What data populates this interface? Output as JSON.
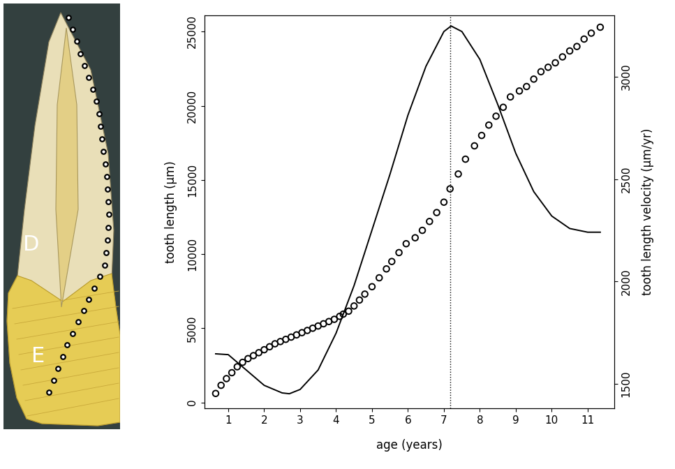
{
  "chart_data": {
    "type": "scatter",
    "xlabel": "age (years)",
    "ylabel": "tooth length (μm)",
    "y2label": "tooth length velocity (μm/yr)",
    "xlim": [
      0.34,
      11.74
    ],
    "xticks": [
      1,
      2,
      3,
      4,
      5,
      6,
      7,
      8,
      9,
      10,
      11
    ],
    "ylim": [
      -400,
      26100
    ],
    "yticks": [
      0,
      5000,
      10000,
      15000,
      20000,
      25000
    ],
    "y2lim": [
      1381,
      3300
    ],
    "y2ticks": [
      1500,
      2000,
      2500,
      3000
    ],
    "grid": false,
    "series": [
      {
        "type": "scatter",
        "color": "#000000",
        "marker": "o",
        "x": [
          0.65,
          0.8,
          0.95,
          1.1,
          1.25,
          1.4,
          1.55,
          1.7,
          1.85,
          2.0,
          2.15,
          2.3,
          2.45,
          2.6,
          2.75,
          2.9,
          3.05,
          3.2,
          3.35,
          3.5,
          3.65,
          3.8,
          3.95,
          4.1,
          4.2,
          4.35,
          4.5,
          4.65,
          4.8,
          5.0,
          5.2,
          5.4,
          5.55,
          5.75,
          5.95,
          6.2,
          6.4,
          6.6,
          6.8,
          7.0,
          7.17,
          7.4,
          7.6,
          7.85,
          8.05,
          8.25,
          8.45,
          8.65,
          8.85,
          9.1,
          9.3,
          9.5,
          9.7,
          9.9,
          10.1,
          10.3,
          10.5,
          10.7,
          10.9,
          11.1,
          11.35
        ],
        "values": [
          600,
          1150,
          1600,
          2000,
          2400,
          2700,
          2950,
          3150,
          3350,
          3550,
          3750,
          3950,
          4100,
          4250,
          4400,
          4550,
          4700,
          4850,
          5000,
          5150,
          5300,
          5450,
          5600,
          5800,
          5950,
          6150,
          6500,
          6900,
          7300,
          7800,
          8400,
          9000,
          9500,
          10100,
          10700,
          11100,
          11600,
          12200,
          12800,
          13500,
          14400,
          15400,
          16400,
          17300,
          18000,
          18700,
          19300,
          19900,
          20600,
          21000,
          21300,
          21800,
          22300,
          22600,
          22900,
          23300,
          23700,
          24000,
          24500,
          24900,
          25300
        ]
      },
      {
        "type": "line",
        "axis": "y2",
        "color": "#000000",
        "line_style": "solid",
        "x": [
          0.65,
          1.0,
          1.5,
          2.0,
          2.5,
          2.7,
          3.0,
          3.5,
          4.0,
          4.5,
          5.0,
          5.5,
          6.0,
          6.5,
          7.0,
          7.2,
          7.5,
          8.0,
          8.5,
          9.0,
          9.5,
          10.0,
          10.5,
          11.0,
          11.35
        ],
        "values": [
          1647,
          1643,
          1568,
          1493,
          1456,
          1452,
          1473,
          1568,
          1748,
          1980,
          2252,
          2524,
          2813,
          3051,
          3221,
          3248,
          3221,
          3085,
          2864,
          2626,
          2439,
          2320,
          2259,
          2241,
          2241
        ]
      }
    ],
    "vline": {
      "x": 7.17,
      "color": "#000000",
      "line_style": "dotted"
    }
  },
  "diagram": {
    "labels": [
      "D",
      "E"
    ]
  }
}
